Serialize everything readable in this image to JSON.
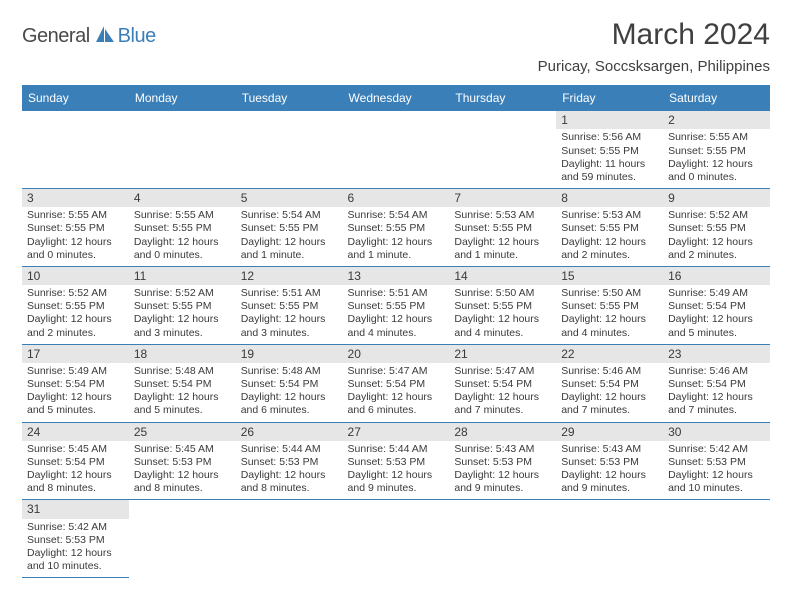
{
  "logo": {
    "text1": "General",
    "text2": "Blue"
  },
  "header": {
    "title": "March 2024",
    "location": "Puricay, Soccsksargen, Philippines"
  },
  "styling": {
    "header_bg": "#3b7fb8",
    "header_text": "#ffffff",
    "daynum_bg": "#e6e6e6",
    "border_color": "#3b7fb8",
    "body_text_color": "#3a3a3a",
    "title_fontsize": 30,
    "location_fontsize": 15,
    "dayname_fontsize": 12,
    "cell_fontsize": 10.5,
    "page_bg": "#ffffff"
  },
  "daynames": [
    "Sunday",
    "Monday",
    "Tuesday",
    "Wednesday",
    "Thursday",
    "Friday",
    "Saturday"
  ],
  "weeks": [
    [
      {
        "empty": true
      },
      {
        "empty": true
      },
      {
        "empty": true
      },
      {
        "empty": true
      },
      {
        "empty": true
      },
      {
        "day": "1",
        "sunrise": "5:56 AM",
        "sunset": "5:55 PM",
        "daylight": "11 hours and 59 minutes."
      },
      {
        "day": "2",
        "sunrise": "5:55 AM",
        "sunset": "5:55 PM",
        "daylight": "12 hours and 0 minutes."
      }
    ],
    [
      {
        "day": "3",
        "sunrise": "5:55 AM",
        "sunset": "5:55 PM",
        "daylight": "12 hours and 0 minutes."
      },
      {
        "day": "4",
        "sunrise": "5:55 AM",
        "sunset": "5:55 PM",
        "daylight": "12 hours and 0 minutes."
      },
      {
        "day": "5",
        "sunrise": "5:54 AM",
        "sunset": "5:55 PM",
        "daylight": "12 hours and 1 minute."
      },
      {
        "day": "6",
        "sunrise": "5:54 AM",
        "sunset": "5:55 PM",
        "daylight": "12 hours and 1 minute."
      },
      {
        "day": "7",
        "sunrise": "5:53 AM",
        "sunset": "5:55 PM",
        "daylight": "12 hours and 1 minute."
      },
      {
        "day": "8",
        "sunrise": "5:53 AM",
        "sunset": "5:55 PM",
        "daylight": "12 hours and 2 minutes."
      },
      {
        "day": "9",
        "sunrise": "5:52 AM",
        "sunset": "5:55 PM",
        "daylight": "12 hours and 2 minutes."
      }
    ],
    [
      {
        "day": "10",
        "sunrise": "5:52 AM",
        "sunset": "5:55 PM",
        "daylight": "12 hours and 2 minutes."
      },
      {
        "day": "11",
        "sunrise": "5:52 AM",
        "sunset": "5:55 PM",
        "daylight": "12 hours and 3 minutes."
      },
      {
        "day": "12",
        "sunrise": "5:51 AM",
        "sunset": "5:55 PM",
        "daylight": "12 hours and 3 minutes."
      },
      {
        "day": "13",
        "sunrise": "5:51 AM",
        "sunset": "5:55 PM",
        "daylight": "12 hours and 4 minutes."
      },
      {
        "day": "14",
        "sunrise": "5:50 AM",
        "sunset": "5:55 PM",
        "daylight": "12 hours and 4 minutes."
      },
      {
        "day": "15",
        "sunrise": "5:50 AM",
        "sunset": "5:55 PM",
        "daylight": "12 hours and 4 minutes."
      },
      {
        "day": "16",
        "sunrise": "5:49 AM",
        "sunset": "5:54 PM",
        "daylight": "12 hours and 5 minutes."
      }
    ],
    [
      {
        "day": "17",
        "sunrise": "5:49 AM",
        "sunset": "5:54 PM",
        "daylight": "12 hours and 5 minutes."
      },
      {
        "day": "18",
        "sunrise": "5:48 AM",
        "sunset": "5:54 PM",
        "daylight": "12 hours and 5 minutes."
      },
      {
        "day": "19",
        "sunrise": "5:48 AM",
        "sunset": "5:54 PM",
        "daylight": "12 hours and 6 minutes."
      },
      {
        "day": "20",
        "sunrise": "5:47 AM",
        "sunset": "5:54 PM",
        "daylight": "12 hours and 6 minutes."
      },
      {
        "day": "21",
        "sunrise": "5:47 AM",
        "sunset": "5:54 PM",
        "daylight": "12 hours and 7 minutes."
      },
      {
        "day": "22",
        "sunrise": "5:46 AM",
        "sunset": "5:54 PM",
        "daylight": "12 hours and 7 minutes."
      },
      {
        "day": "23",
        "sunrise": "5:46 AM",
        "sunset": "5:54 PM",
        "daylight": "12 hours and 7 minutes."
      }
    ],
    [
      {
        "day": "24",
        "sunrise": "5:45 AM",
        "sunset": "5:54 PM",
        "daylight": "12 hours and 8 minutes."
      },
      {
        "day": "25",
        "sunrise": "5:45 AM",
        "sunset": "5:53 PM",
        "daylight": "12 hours and 8 minutes."
      },
      {
        "day": "26",
        "sunrise": "5:44 AM",
        "sunset": "5:53 PM",
        "daylight": "12 hours and 8 minutes."
      },
      {
        "day": "27",
        "sunrise": "5:44 AM",
        "sunset": "5:53 PM",
        "daylight": "12 hours and 9 minutes."
      },
      {
        "day": "28",
        "sunrise": "5:43 AM",
        "sunset": "5:53 PM",
        "daylight": "12 hours and 9 minutes."
      },
      {
        "day": "29",
        "sunrise": "5:43 AM",
        "sunset": "5:53 PM",
        "daylight": "12 hours and 9 minutes."
      },
      {
        "day": "30",
        "sunrise": "5:42 AM",
        "sunset": "5:53 PM",
        "daylight": "12 hours and 10 minutes."
      }
    ],
    [
      {
        "day": "31",
        "sunrise": "5:42 AM",
        "sunset": "5:53 PM",
        "daylight": "12 hours and 10 minutes."
      },
      {
        "empty": true
      },
      {
        "empty": true
      },
      {
        "empty": true
      },
      {
        "empty": true
      },
      {
        "empty": true
      },
      {
        "empty": true
      }
    ]
  ],
  "labels": {
    "sunrise": "Sunrise: ",
    "sunset": "Sunset: ",
    "daylight": "Daylight: "
  }
}
